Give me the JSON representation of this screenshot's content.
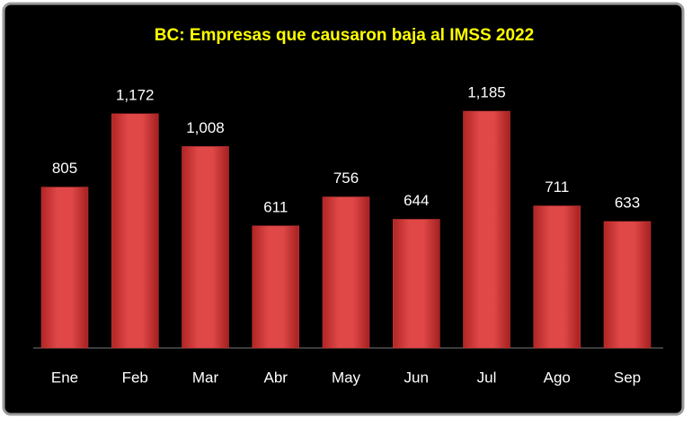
{
  "chart_data": {
    "type": "bar",
    "title": "BC: Empresas que causaron baja al IMSS 2022",
    "categories": [
      "Ene",
      "Feb",
      "Mar",
      "Abr",
      "May",
      "Jun",
      "Jul",
      "Ago",
      "Sep"
    ],
    "values": [
      805,
      1172,
      1008,
      611,
      756,
      644,
      1185,
      711,
      633
    ],
    "value_labels": [
      "805",
      "1,172",
      "1,008",
      "611",
      "756",
      "644",
      "1,185",
      "711",
      "633"
    ],
    "color": "#d63a3a"
  }
}
